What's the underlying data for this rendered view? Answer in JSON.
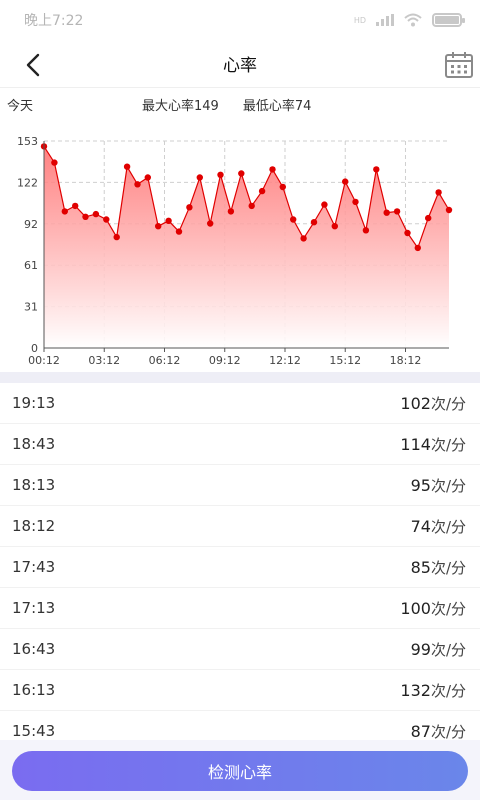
{
  "status_bar": {
    "time": "晚上7:22",
    "network_label": "HD"
  },
  "header": {
    "title": "心率",
    "back_icon": "chevron-left-icon",
    "calendar_icon": "calendar-icon"
  },
  "summary": {
    "day_label": "今天",
    "max_text": "最大心率149",
    "min_text": "最低心率74"
  },
  "chart_data": {
    "type": "area",
    "title": "",
    "xlabel": "",
    "ylabel": "",
    "ylim": [
      0,
      153
    ],
    "y_ticks": [
      "0",
      "31",
      "61",
      "92",
      "122",
      "153"
    ],
    "x_ticks": [
      "00:12",
      "03:12",
      "06:12",
      "09:12",
      "12:12",
      "15:12",
      "18:12"
    ],
    "x_tick_minutes": [
      12,
      192,
      372,
      552,
      732,
      912,
      1092
    ],
    "xlim_minutes": [
      12,
      1222
    ],
    "line_color": "#e00000",
    "fill_color": "#ff8080",
    "grid": true,
    "series": [
      {
        "values": [
          149,
          137,
          101,
          105,
          97,
          99,
          95,
          82,
          134,
          121,
          126,
          90,
          94,
          86,
          104,
          126,
          92,
          128,
          101,
          129,
          105,
          116,
          132,
          119,
          95,
          81,
          93,
          106,
          90,
          123,
          108,
          87,
          132,
          100,
          101,
          85,
          74,
          96,
          115,
          102
        ]
      }
    ]
  },
  "records": [
    {
      "time": "19:13",
      "value": "102",
      "unit": "次/分"
    },
    {
      "time": "18:43",
      "value": "114",
      "unit": "次/分"
    },
    {
      "time": "18:13",
      "value": "95",
      "unit": "次/分"
    },
    {
      "time": "18:12",
      "value": "74",
      "unit": "次/分"
    },
    {
      "time": "17:43",
      "value": "85",
      "unit": "次/分"
    },
    {
      "time": "17:13",
      "value": "100",
      "unit": "次/分"
    },
    {
      "time": "16:43",
      "value": "99",
      "unit": "次/分"
    },
    {
      "time": "16:13",
      "value": "132",
      "unit": "次/分"
    },
    {
      "time": "15:43",
      "value": "87",
      "unit": "次/分"
    }
  ],
  "footer": {
    "detect_button_label": "检测心率"
  },
  "colors": {
    "accent_start": "#7a6cf0",
    "accent_end": "#6a86ea",
    "chart_line": "#e00000"
  }
}
